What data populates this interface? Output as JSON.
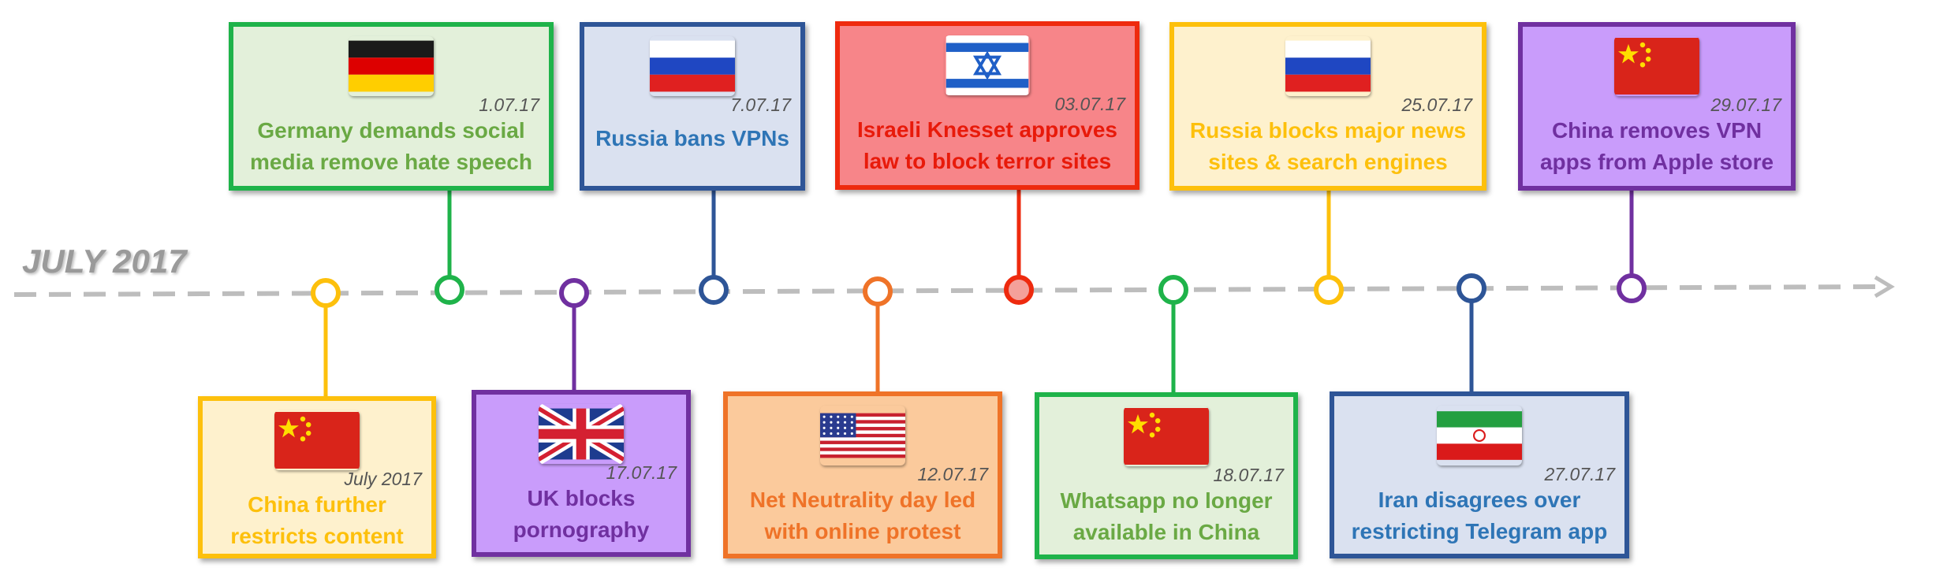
{
  "axis_label": "JULY 2017",
  "colors": {
    "green": "#1fb34a",
    "green_text": "#6aa944",
    "green_fill": "#e3f0da",
    "blue": "#2e5597",
    "blue_text": "#2e75b6",
    "blue_fill": "#dae1f0",
    "red": "#ee2a0e",
    "red_fill": "#f78589",
    "red_text": "#e81a0a",
    "yellow": "#fdc00c",
    "yellow_fill": "#fef1cd",
    "purple": "#7030a0",
    "purple_fill": "#c99cfb",
    "orange": "#ef7328",
    "orange_fill": "#fbca9c",
    "axis": "#bdbdbd"
  },
  "events": [
    {
      "id": "germany",
      "icon": "germany-flag-icon",
      "flag": "germany",
      "date": "1.07.17",
      "lines": [
        "Germany demands social",
        "media remove hate speech"
      ],
      "theme": "green"
    },
    {
      "id": "russia-vpn",
      "icon": "russia-flag-icon",
      "flag": "russia",
      "date": "7.07.17",
      "lines": [
        "Russia bans VPNs"
      ],
      "theme": "blue"
    },
    {
      "id": "israel",
      "icon": "israel-flag-icon",
      "flag": "israel",
      "date": "03.07.17",
      "lines": [
        "Israeli Knesset approves",
        "law to block terror sites"
      ],
      "theme": "red"
    },
    {
      "id": "russia-news",
      "icon": "russia-flag-icon",
      "flag": "russia",
      "date": "25.07.17",
      "lines": [
        "Russia blocks major news",
        "sites & search engines"
      ],
      "theme": "yellow"
    },
    {
      "id": "china-vpn",
      "icon": "china-flag-icon",
      "flag": "china",
      "date": "29.07.17",
      "lines": [
        "China removes VPN",
        "apps from Apple store"
      ],
      "theme": "purple"
    },
    {
      "id": "china-content",
      "icon": "china-flag-icon",
      "flag": "china",
      "date": "July 2017",
      "lines": [
        "China further",
        "restricts content"
      ],
      "theme": "yellow"
    },
    {
      "id": "uk",
      "icon": "uk-flag-icon",
      "flag": "uk",
      "date": "17.07.17",
      "lines": [
        "UK blocks",
        "pornography"
      ],
      "theme": "purple"
    },
    {
      "id": "usa",
      "icon": "usa-flag-icon",
      "flag": "usa",
      "date": "12.07.17",
      "lines": [
        "Net Neutrality day led",
        "with online protest"
      ],
      "theme": "orange"
    },
    {
      "id": "china-whatsapp",
      "icon": "china-flag-icon",
      "flag": "china",
      "date": "18.07.17",
      "lines": [
        "Whatsapp no longer",
        "available in China"
      ],
      "theme": "green"
    },
    {
      "id": "iran",
      "icon": "iran-flag-icon",
      "flag": "iran",
      "date": "27.07.17",
      "lines": [
        "Iran disagrees over",
        "restricting Telegram app"
      ],
      "theme": "blue"
    }
  ]
}
